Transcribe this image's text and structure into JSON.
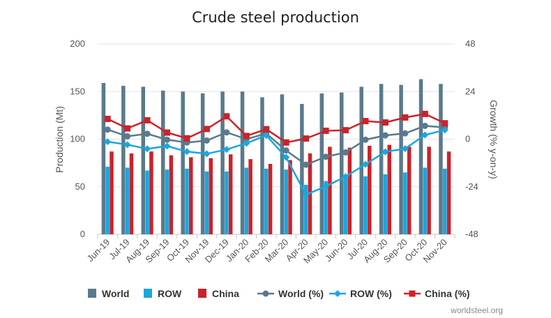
{
  "chart_data": {
    "type": "bar",
    "title": "Crude steel production",
    "ylabel": "Production (Mt)",
    "y2label": "Growth (% y-on-y)",
    "ylim": [
      0,
      200
    ],
    "y2lim": [
      -48,
      48
    ],
    "yticks": [
      "0",
      "50",
      "100",
      "150",
      "200"
    ],
    "y2ticks": [
      "-48",
      "-24",
      "0",
      "24",
      "48"
    ],
    "grid": true,
    "legend_position": "bottom",
    "categories": [
      "Jun-19",
      "Jul-19",
      "Aug-19",
      "Sep-19",
      "Oct-19",
      "Nov-19",
      "Dec-19",
      "Jan-20",
      "Feb-20",
      "Mar-20",
      "Apr-20",
      "May-20",
      "Jun-20",
      "Jul-20",
      "Aug-20",
      "Sep-20",
      "Oct-20",
      "Nov-20"
    ],
    "series": [
      {
        "name": "World",
        "kind": "bar",
        "axis": "left",
        "color": "#5a7a8c",
        "values": [
          159,
          156,
          155,
          151,
          150,
          148,
          150,
          150,
          144,
          147,
          137,
          148,
          149,
          155,
          158,
          157,
          163,
          158
        ]
      },
      {
        "name": "ROW",
        "kind": "bar",
        "axis": "left",
        "color": "#1aa7de",
        "values": [
          71,
          70,
          67,
          68,
          69,
          66,
          66,
          70,
          69,
          68,
          52,
          56,
          59,
          61,
          63,
          65,
          70,
          69
        ]
      },
      {
        "name": "China",
        "kind": "bar",
        "axis": "left",
        "color": "#cc2229",
        "values": [
          87,
          85,
          87,
          83,
          81,
          80,
          84,
          79,
          74,
          78,
          85,
          92,
          91,
          93,
          94,
          92,
          92,
          87
        ]
      },
      {
        "name": "World (%)",
        "kind": "line",
        "marker": "circle",
        "axis": "right",
        "color": "#5a7a8c",
        "values": [
          4.8,
          1.4,
          2.7,
          -0.3,
          -1.7,
          -0.7,
          3.4,
          0.0,
          2.8,
          -5.7,
          -12.9,
          -8.9,
          -6.7,
          -0.3,
          1.9,
          2.9,
          6.7,
          5.9
        ]
      },
      {
        "name": "ROW (%)",
        "kind": "line",
        "marker": "diamond",
        "axis": "right",
        "color": "#1aa7de",
        "values": [
          -1.3,
          -2.8,
          -4.9,
          -3.5,
          -6.3,
          -7.4,
          -5.2,
          -2.1,
          1.9,
          -9.2,
          -28.0,
          -23.8,
          -18.9,
          -12.7,
          -6.4,
          -4.8,
          2.1,
          4.6
        ]
      },
      {
        "name": "China (%)",
        "kind": "line",
        "marker": "square",
        "axis": "right",
        "color": "#cc2229",
        "values": [
          10.2,
          5.4,
          9.5,
          3.3,
          0.4,
          5.1,
          11.5,
          1.6,
          5.0,
          -1.7,
          0.3,
          4.2,
          4.5,
          9.1,
          8.4,
          10.9,
          12.7,
          8.0
        ]
      }
    ],
    "legend": [
      "World",
      "ROW",
      "China",
      "World (%)",
      "ROW (%)",
      "China (%)"
    ],
    "credit": "worldsteel.org"
  }
}
